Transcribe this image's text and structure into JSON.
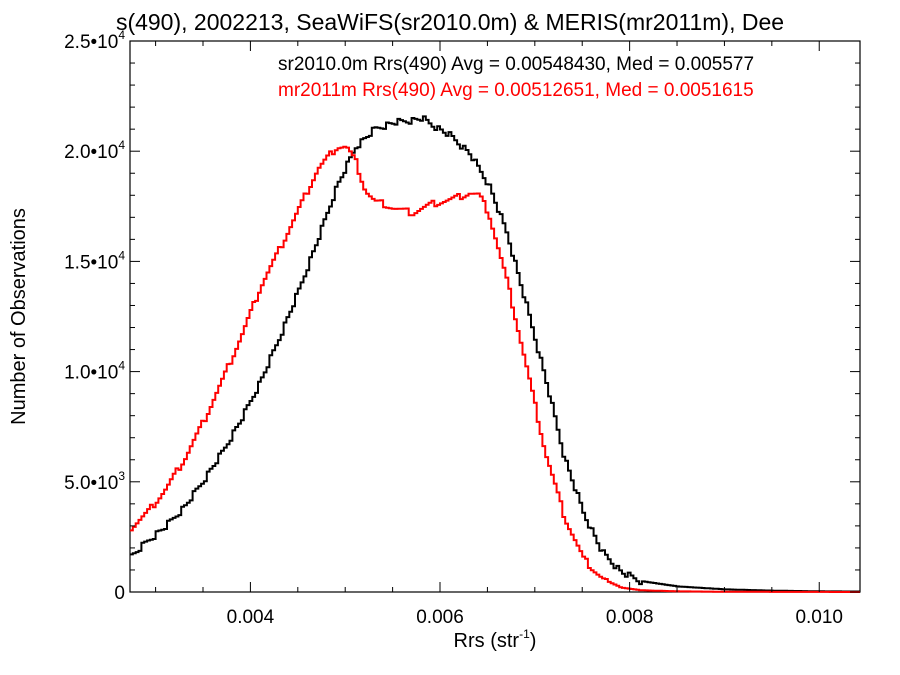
{
  "chart_data": {
    "type": "line",
    "title": "s(490), 2002213, SeaWiFS(sr2010.0m) & MERIS(mr2011m), Dee",
    "xlabel": "Rrs (str",
    "xlabel_sup": "-1",
    "xlabel_end": ")",
    "ylabel": "Number of Observations",
    "xlim": [
      0.00273,
      0.01043
    ],
    "ylim": [
      0,
      25000
    ],
    "x_ticks": [
      {
        "value": 0.004,
        "label": "0.004"
      },
      {
        "value": 0.006,
        "label": "0.006"
      },
      {
        "value": 0.008,
        "label": "0.008"
      },
      {
        "value": 0.01,
        "label": "0.010"
      }
    ],
    "y_ticks": [
      {
        "value": 0,
        "mant": "0",
        "exp": ""
      },
      {
        "value": 5000,
        "mant": "5.0•10",
        "exp": "3"
      },
      {
        "value": 10000,
        "mant": "1.0•10",
        "exp": "4"
      },
      {
        "value": 15000,
        "mant": "1.5•10",
        "exp": "4"
      },
      {
        "value": 20000,
        "mant": "2.0•10",
        "exp": "4"
      },
      {
        "value": 25000,
        "mant": "2.5•10",
        "exp": "4"
      }
    ],
    "grid": false,
    "legend_position": "top-right",
    "series": [
      {
        "name": "sr2010.0m Rrs(490) Avg = 0.00548430, Med = 0.005577",
        "color": "#000000",
        "x": [
          0.00273,
          0.0029,
          0.0031,
          0.0033,
          0.0035,
          0.0037,
          0.0039,
          0.0041,
          0.0043,
          0.0045,
          0.0047,
          0.0049,
          0.0051,
          0.0053,
          0.0055,
          0.0057,
          0.0058,
          0.0059,
          0.0061,
          0.0063,
          0.0065,
          0.0067,
          0.0069,
          0.0071,
          0.0073,
          0.0075,
          0.0077,
          0.0079,
          0.0081,
          0.0085,
          0.009,
          0.0095,
          0.01,
          0.01043
        ],
        "values": [
          1600,
          2300,
          3000,
          3900,
          5100,
          6400,
          7900,
          9600,
          11600,
          13700,
          16000,
          18400,
          20200,
          21000,
          21300,
          21400,
          21500,
          21200,
          20700,
          19900,
          18500,
          16200,
          13000,
          9700,
          6100,
          3600,
          1800,
          900,
          500,
          250,
          120,
          60,
          30,
          20
        ]
      },
      {
        "name": "mr2011m Rrs(490) Avg = 0.00512651, Med = 0.0051615",
        "color": "#ff0000",
        "x": [
          0.00273,
          0.0029,
          0.0031,
          0.0033,
          0.0035,
          0.0037,
          0.0039,
          0.0041,
          0.0043,
          0.0045,
          0.0047,
          0.0049,
          0.005,
          0.0051,
          0.0052,
          0.0053,
          0.0054,
          0.0055,
          0.0057,
          0.0059,
          0.0061,
          0.0063,
          0.0064,
          0.0065,
          0.0067,
          0.0069,
          0.0071,
          0.0073,
          0.0075,
          0.0077,
          0.0079,
          0.0081,
          0.0085,
          0.009,
          0.01043
        ],
        "values": [
          2900,
          3600,
          4700,
          6100,
          7800,
          9700,
          11700,
          13900,
          15600,
          17400,
          19200,
          20200,
          20200,
          19500,
          18200,
          17700,
          17600,
          17400,
          17200,
          17600,
          17800,
          18100,
          18000,
          17200,
          14000,
          10200,
          6300,
          3400,
          1500,
          600,
          200,
          80,
          30,
          10,
          0
        ]
      }
    ]
  }
}
